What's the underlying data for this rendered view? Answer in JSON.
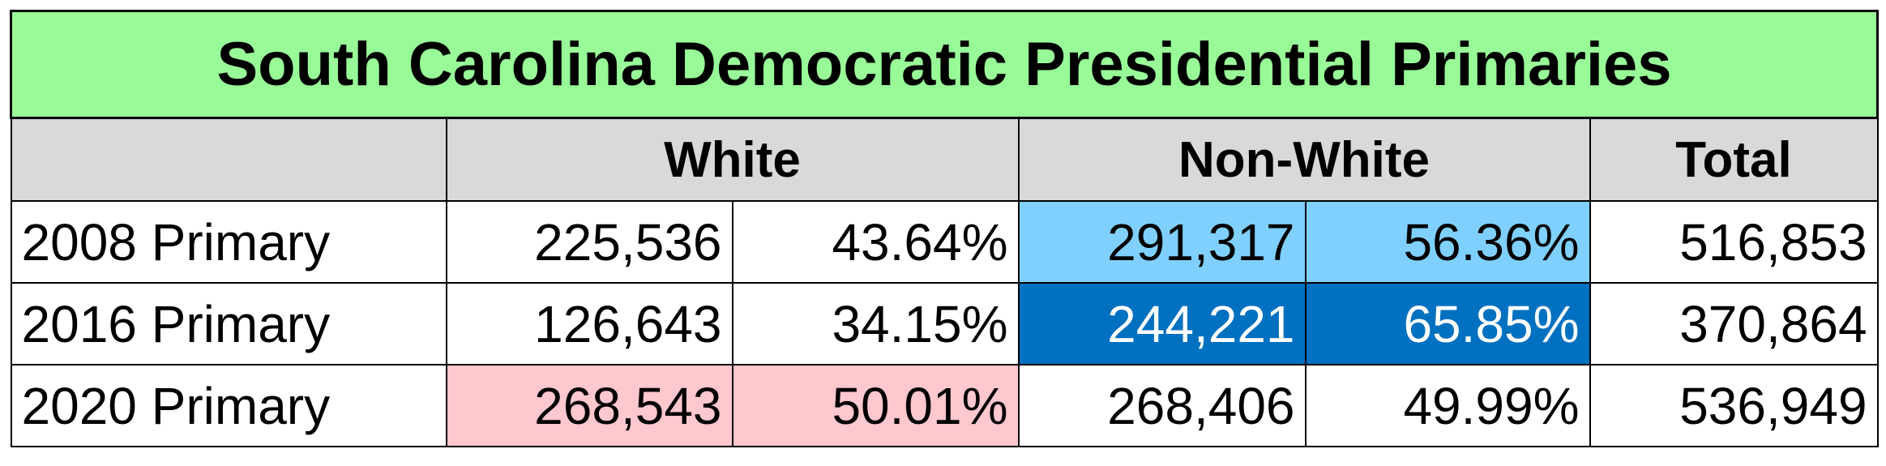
{
  "table": {
    "title": "South Carolina Democratic Presidential Primaries",
    "headers": [
      "White",
      "Non-White",
      "Total"
    ],
    "rows": [
      [
        "2008 Primary",
        "225,536",
        "43.64%",
        "291,317",
        "56.36%",
        "516,853"
      ],
      [
        "2016 Primary",
        "126,643",
        "34.15%",
        "244,221",
        "65.85%",
        "370,864"
      ],
      [
        "2020 Primary",
        "268,543",
        "50.01%",
        "268,406",
        "49.99%",
        "536,949"
      ]
    ]
  }
}
